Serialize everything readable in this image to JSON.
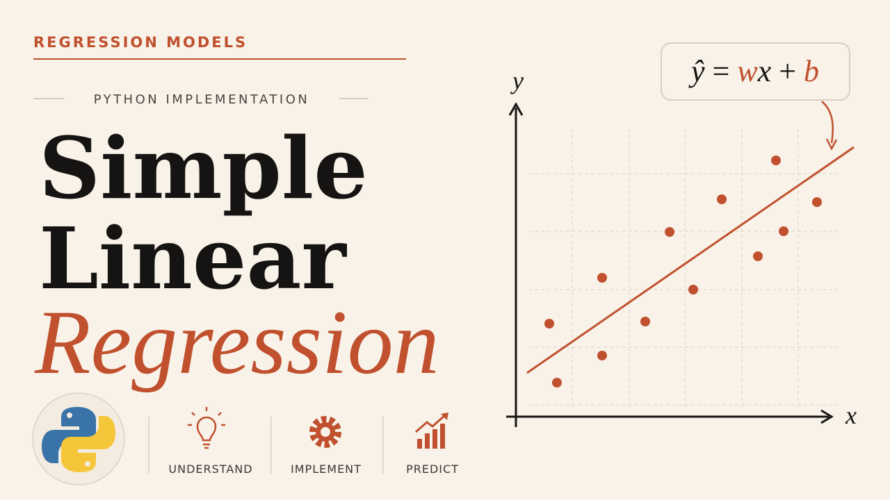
{
  "header": {
    "kicker": "REGRESSION MODELS",
    "subtitle": "PYTHON IMPLEMENTATION"
  },
  "title": {
    "line1": "Simple",
    "line2": "Linear",
    "line3": "Regression"
  },
  "illustration": {
    "y_label": "y",
    "x_label": "x",
    "formula": {
      "yhat": "ŷ",
      "equals": "=",
      "w": "w",
      "x": "x",
      "plus": "+",
      "b": "b"
    }
  },
  "features": [
    {
      "label": "UNDERSTAND"
    },
    {
      "label": "IMPLEMENT"
    },
    {
      "label": "PREDICT"
    }
  ]
}
